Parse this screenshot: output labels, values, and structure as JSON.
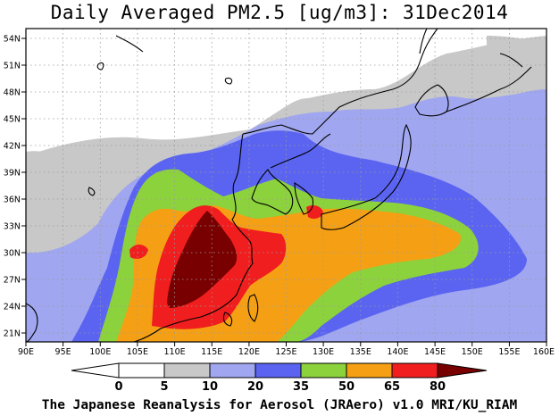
{
  "title": "Daily Averaged PM2.5 [ug/m3]: 31Dec2014",
  "footer": "The Japanese Reanalysis for Aerosol (JRAero) v1.0 MRI/KU_RIAM",
  "map": {
    "lon_range": [
      90,
      160
    ],
    "lat_range": [
      20,
      55
    ],
    "lon_ticks": [
      "90E",
      "95E",
      "100E",
      "105E",
      "110E",
      "115E",
      "120E",
      "125E",
      "130E",
      "135E",
      "140E",
      "145E",
      "150E",
      "155E",
      "160E"
    ],
    "lat_ticks": [
      "21N",
      "24N",
      "27N",
      "30N",
      "33N",
      "36N",
      "39N",
      "42N",
      "45N",
      "48N",
      "51N",
      "54N"
    ],
    "grid": true
  },
  "colorbar": {
    "labels": [
      "0",
      "5",
      "10",
      "20",
      "35",
      "50",
      "65",
      "80"
    ],
    "colors": [
      "#ffffff",
      "#ffffff",
      "#c8c8c8",
      "#a0a6f0",
      "#5a64f0",
      "#8cd23c",
      "#f5a014",
      "#f01e1e",
      "#780000"
    ]
  }
}
